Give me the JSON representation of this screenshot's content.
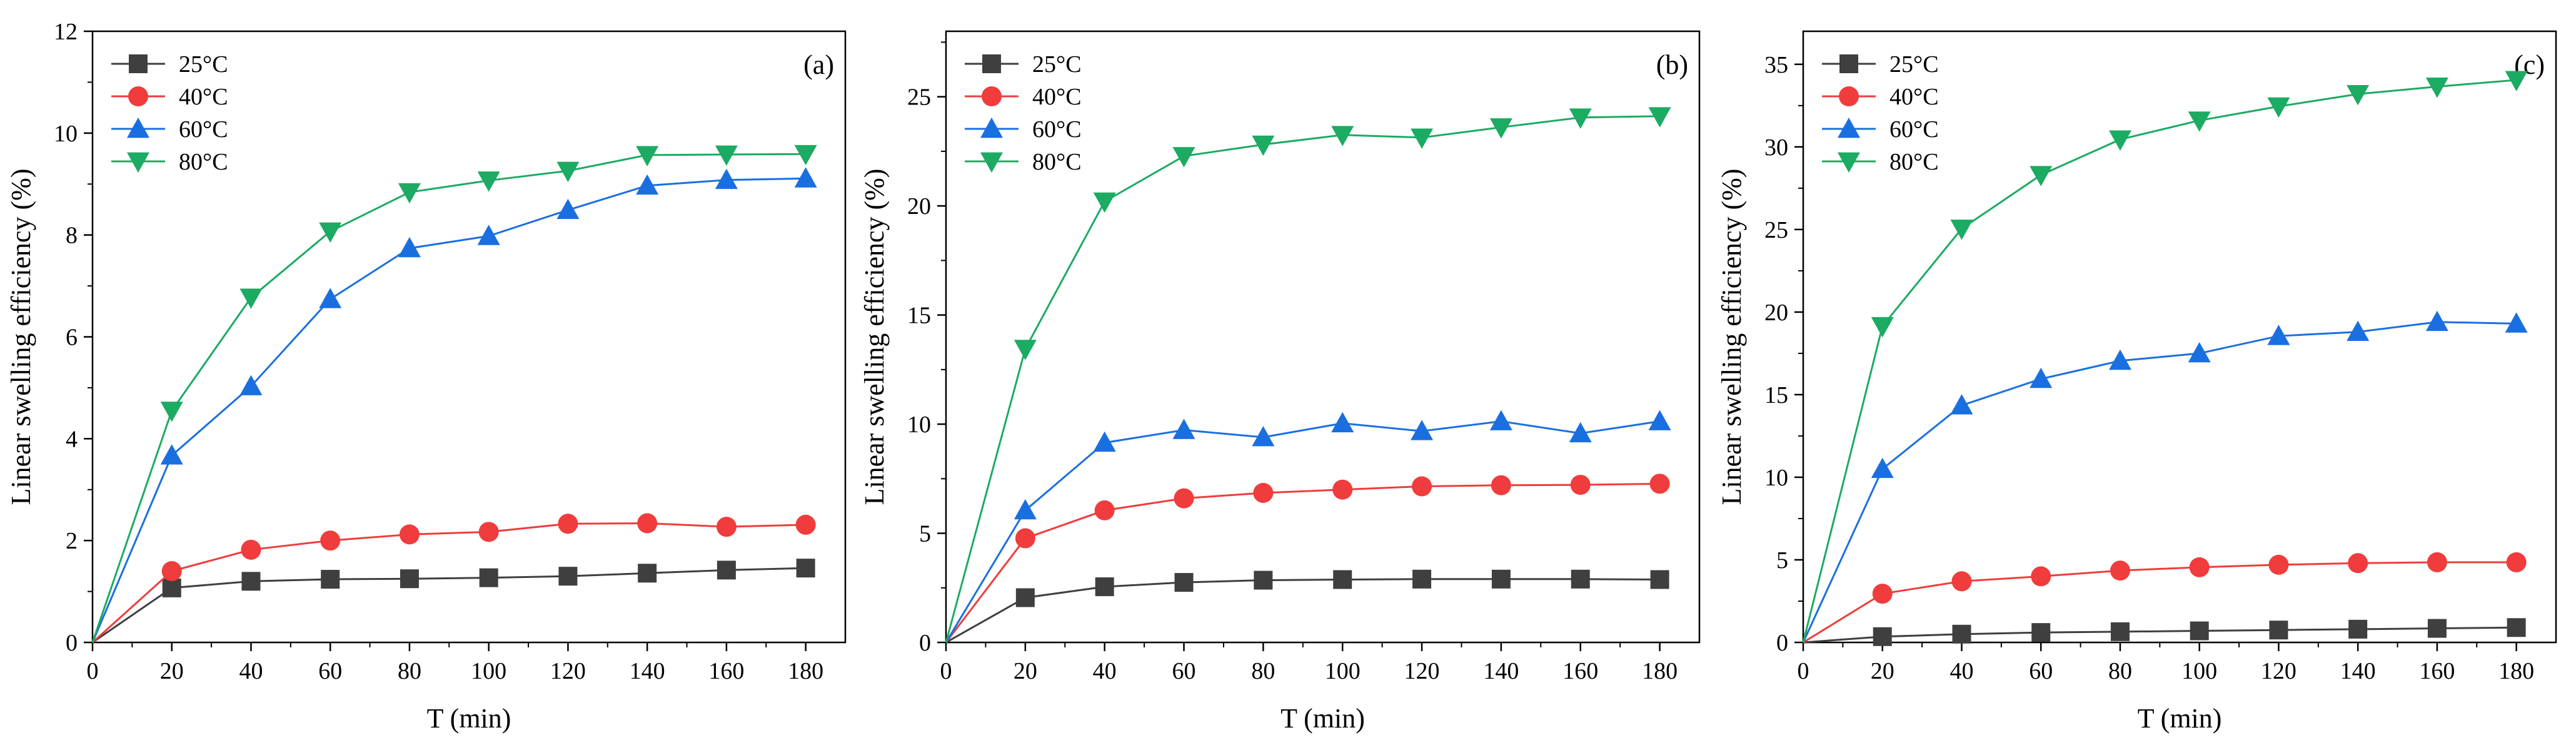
{
  "chart_data": [
    {
      "type": "line",
      "panel_label": "(a)",
      "xlabel": "T (min)",
      "ylabel": "Linear swelling efficiency (%)",
      "xlim": [
        0,
        190
      ],
      "ylim": [
        0,
        12
      ],
      "xticks": [
        0,
        20,
        40,
        60,
        80,
        100,
        120,
        140,
        160,
        180
      ],
      "yticks": [
        0,
        2,
        4,
        6,
        8,
        10,
        12
      ],
      "legend_position": "top-left",
      "x": [
        0,
        20,
        40,
        60,
        80,
        100,
        120,
        140,
        160,
        180
      ],
      "series": [
        {
          "name": "25°C",
          "color": "#3f3f3f",
          "marker": "square",
          "values": [
            0,
            1.07,
            1.2,
            1.24,
            1.25,
            1.27,
            1.3,
            1.36,
            1.42,
            1.46
          ]
        },
        {
          "name": "40°C",
          "color": "#f03c3c",
          "marker": "circle",
          "values": [
            0,
            1.4,
            1.82,
            2.0,
            2.12,
            2.17,
            2.33,
            2.34,
            2.27,
            2.31
          ]
        },
        {
          "name": "60°C",
          "color": "#1a6fe0",
          "marker": "triangle-up",
          "values": [
            0,
            3.67,
            5.03,
            6.74,
            7.74,
            7.98,
            8.49,
            8.97,
            9.08,
            9.11
          ]
        },
        {
          "name": "80°C",
          "color": "#1bab62",
          "marker": "triangle-down",
          "values": [
            0,
            4.55,
            6.77,
            8.07,
            8.84,
            9.07,
            9.26,
            9.57,
            9.58,
            9.59
          ]
        }
      ]
    },
    {
      "type": "line",
      "panel_label": "(b)",
      "xlabel": "T (min)",
      "ylabel": "Linear swelling efficiency (%)",
      "xlim": [
        0,
        190
      ],
      "ylim": [
        0,
        28
      ],
      "xticks": [
        0,
        20,
        40,
        60,
        80,
        100,
        120,
        140,
        160,
        180
      ],
      "yticks": [
        0,
        5,
        10,
        15,
        20,
        25
      ],
      "legend_position": "top-left",
      "x": [
        0,
        20,
        40,
        60,
        80,
        100,
        120,
        140,
        160,
        180
      ],
      "series": [
        {
          "name": "25°C",
          "color": "#3f3f3f",
          "marker": "square",
          "values": [
            0,
            2.05,
            2.55,
            2.75,
            2.85,
            2.88,
            2.9,
            2.9,
            2.9,
            2.88
          ]
        },
        {
          "name": "40°C",
          "color": "#f03c3c",
          "marker": "circle",
          "values": [
            0,
            4.77,
            6.05,
            6.6,
            6.85,
            7.0,
            7.15,
            7.2,
            7.22,
            7.27
          ]
        },
        {
          "name": "60°C",
          "color": "#1a6fe0",
          "marker": "triangle-up",
          "values": [
            0,
            6.05,
            9.15,
            9.73,
            9.4,
            10.04,
            9.68,
            10.13,
            9.58,
            10.13
          ]
        },
        {
          "name": "80°C",
          "color": "#1bab62",
          "marker": "triangle-down",
          "values": [
            0,
            13.45,
            20.2,
            22.28,
            22.81,
            23.25,
            23.13,
            23.6,
            24.05,
            24.11
          ]
        }
      ]
    },
    {
      "type": "line",
      "panel_label": "(c)",
      "xlabel": "T (min)",
      "ylabel": "Linear swelling efficiency (%)",
      "xlim": [
        0,
        190
      ],
      "ylim": [
        0,
        37
      ],
      "xticks": [
        0,
        20,
        40,
        60,
        80,
        100,
        120,
        140,
        160,
        180
      ],
      "yticks": [
        0,
        5,
        10,
        15,
        20,
        25,
        30,
        35
      ],
      "legend_position": "top-left",
      "x": [
        0,
        20,
        40,
        60,
        80,
        100,
        120,
        140,
        160,
        180
      ],
      "series": [
        {
          "name": "25°C",
          "color": "#3f3f3f",
          "marker": "square",
          "values": [
            0,
            0.35,
            0.5,
            0.6,
            0.65,
            0.7,
            0.75,
            0.8,
            0.85,
            0.9
          ]
        },
        {
          "name": "40°C",
          "color": "#f03c3c",
          "marker": "circle",
          "values": [
            0,
            2.95,
            3.7,
            4.0,
            4.35,
            4.55,
            4.7,
            4.8,
            4.85,
            4.85
          ]
        },
        {
          "name": "60°C",
          "color": "#1a6fe0",
          "marker": "triangle-up",
          "values": [
            0,
            10.5,
            14.35,
            15.95,
            17.05,
            17.5,
            18.55,
            18.8,
            19.4,
            19.3
          ]
        },
        {
          "name": "80°C",
          "color": "#1bab62",
          "marker": "triangle-down",
          "values": [
            0,
            19.15,
            25.05,
            28.3,
            30.45,
            31.6,
            32.45,
            33.2,
            33.65,
            34.05
          ]
        }
      ]
    }
  ]
}
